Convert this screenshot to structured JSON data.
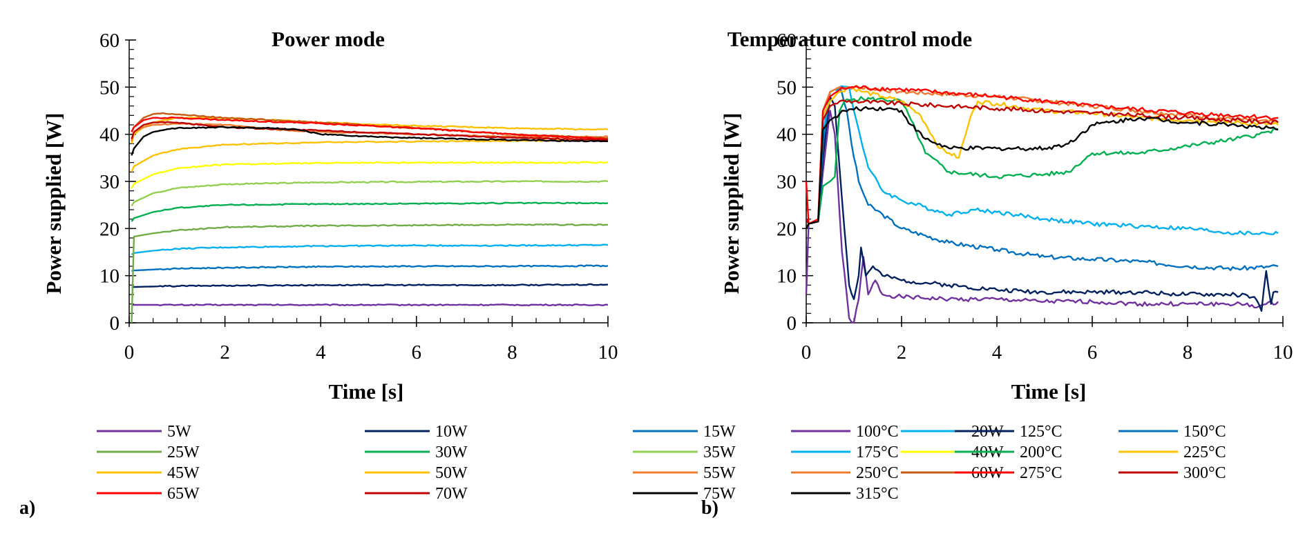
{
  "chart_data": [
    {
      "type": "line",
      "panel_label": "a)",
      "title": "Power mode",
      "xlabel": "Time [s]",
      "ylabel": "Power supplied [W]",
      "xlim": [
        0,
        10
      ],
      "ylim": [
        0,
        60
      ],
      "xticks": [
        "0",
        "2",
        "4",
        "6",
        "8",
        "10"
      ],
      "yticks": [
        "0",
        "10",
        "20",
        "30",
        "40",
        "50",
        "60"
      ],
      "grid": false,
      "legend_position": "bottom",
      "series": [
        {
          "name": "5W",
          "color": "#7030A0",
          "x": [
            0.05,
            0.1,
            0.5,
            1,
            2,
            4,
            6,
            8,
            10
          ],
          "y": [
            3.8,
            3.8,
            3.8,
            3.8,
            3.8,
            3.8,
            3.8,
            3.8,
            3.8
          ]
        },
        {
          "name": "10W",
          "color": "#002060",
          "x": [
            0.05,
            0.1,
            0.5,
            1,
            2,
            4,
            6,
            8,
            10
          ],
          "y": [
            7.5,
            7.6,
            7.7,
            7.8,
            7.9,
            8.0,
            8.0,
            8.0,
            8.1
          ]
        },
        {
          "name": "15W",
          "color": "#0070C0",
          "x": [
            0.05,
            0.1,
            0.5,
            1,
            2,
            4,
            6,
            8,
            10
          ],
          "y": [
            11.0,
            11.1,
            11.3,
            11.5,
            11.7,
            11.9,
            12.0,
            12.0,
            12.1
          ]
        },
        {
          "name": "20W",
          "color": "#00B0F0",
          "x": [
            0.05,
            0.1,
            0.5,
            1,
            2,
            4,
            6,
            8,
            10
          ],
          "y": [
            14.5,
            14.8,
            15.3,
            15.7,
            16.0,
            16.3,
            16.4,
            16.4,
            16.5
          ]
        },
        {
          "name": "25W",
          "color": "#70AD47",
          "x": [
            0.05,
            0.1,
            0.5,
            1,
            2,
            4,
            6,
            8,
            10
          ],
          "y": [
            0,
            18.3,
            19.0,
            19.6,
            20.3,
            20.6,
            20.7,
            20.8,
            20.8
          ]
        },
        {
          "name": "30W",
          "color": "#00B050",
          "x": [
            0.05,
            0.1,
            0.5,
            1,
            2,
            4,
            6,
            8,
            10
          ],
          "y": [
            21.5,
            22.2,
            23.5,
            24.4,
            25.0,
            25.2,
            25.3,
            25.4,
            25.4
          ]
        },
        {
          "name": "35W",
          "color": "#92D050",
          "x": [
            0.05,
            0.1,
            0.5,
            1,
            2,
            4,
            6,
            8,
            10
          ],
          "y": [
            24.8,
            25.6,
            27.5,
            28.6,
            29.4,
            29.8,
            29.9,
            30.0,
            30.0
          ]
        },
        {
          "name": "40W",
          "color": "#FFFF00",
          "x": [
            0.05,
            0.1,
            0.5,
            1,
            2,
            4,
            6,
            8,
            10
          ],
          "y": [
            28.5,
            29.5,
            31.5,
            32.8,
            33.6,
            33.9,
            34.0,
            34.0,
            34.0
          ]
        },
        {
          "name": "45W",
          "color": "#FFC000",
          "x": [
            0.05,
            0.1,
            0.5,
            1,
            2,
            4,
            6,
            8,
            10
          ],
          "y": [
            32.0,
            33.2,
            35.5,
            36.8,
            37.8,
            38.3,
            38.5,
            38.6,
            38.7
          ]
        },
        {
          "name": "50W",
          "color": "#FFC000",
          "x": [
            0.05,
            0.1,
            0.3,
            0.5,
            1,
            2,
            4,
            6,
            8,
            10
          ],
          "y": [
            38.0,
            40.0,
            41.5,
            42.5,
            43.5,
            43.5,
            42.5,
            41.8,
            41.3,
            41.0
          ]
        },
        {
          "name": "55W",
          "color": "#ED7D31",
          "x": [
            0.05,
            0.1,
            0.3,
            0.5,
            1,
            2,
            3,
            4,
            6,
            8,
            10
          ],
          "y": [
            38.5,
            40.5,
            41.5,
            42.0,
            42.2,
            42.0,
            41.0,
            40.5,
            40.0,
            39.5,
            39.5
          ]
        },
        {
          "name": "60W",
          "color": "#C55A11",
          "x": [
            0.05,
            0.1,
            0.3,
            0.5,
            0.7,
            1,
            2,
            4,
            6,
            8,
            10
          ],
          "y": [
            40.5,
            41.5,
            43.5,
            44.3,
            44.5,
            44.2,
            43.5,
            42.5,
            41.3,
            40.0,
            39.2
          ]
        },
        {
          "name": "65W",
          "color": "#FF0000",
          "x": [
            0.05,
            0.1,
            0.3,
            0.5,
            1,
            2,
            4,
            6,
            8,
            10
          ],
          "y": [
            40.5,
            41.5,
            43.0,
            43.5,
            43.5,
            43.0,
            42.3,
            41.3,
            40.0,
            39.0
          ]
        },
        {
          "name": "70W",
          "color": "#C00000",
          "x": [
            0.05,
            0.1,
            0.3,
            0.5,
            1,
            2,
            4,
            6,
            8,
            10
          ],
          "y": [
            39.0,
            40.5,
            42.0,
            42.5,
            42.5,
            41.5,
            40.8,
            40.0,
            39.3,
            38.8
          ]
        },
        {
          "name": "75W",
          "color": "#000000",
          "x": [
            0.05,
            0.1,
            0.3,
            0.5,
            1,
            2,
            3,
            3.5,
            4,
            5,
            6,
            8,
            10
          ],
          "y": [
            35.5,
            37.0,
            39.5,
            40.5,
            41.3,
            41.5,
            41.3,
            41.0,
            40.0,
            39.5,
            39.2,
            38.8,
            38.5
          ]
        }
      ]
    },
    {
      "type": "line",
      "panel_label": "b)",
      "title": "Temperature control mode",
      "xlabel": "Time [s]",
      "ylabel": "Power supplied [W]",
      "xlim": [
        0,
        10
      ],
      "ylim": [
        0,
        60
      ],
      "xticks": [
        "0",
        "2",
        "4",
        "6",
        "8",
        "10"
      ],
      "yticks": [
        "0",
        "10",
        "20",
        "30",
        "40",
        "50",
        "60"
      ],
      "grid": false,
      "legend_position": "bottom",
      "series": [
        {
          "name": "100°C",
          "color": "#7030A0",
          "x": [
            0,
            0.05,
            0.25,
            0.35,
            0.5,
            0.6,
            0.75,
            0.9,
            1.0,
            1.1,
            1.2,
            1.3,
            1.45,
            1.6,
            2,
            3,
            4,
            5,
            6,
            7,
            8,
            9,
            9.5,
            9.9
          ],
          "y": [
            6,
            21,
            21.5,
            32,
            45,
            40,
            15,
            1,
            0,
            5,
            14,
            6,
            9,
            6,
            5.5,
            5,
            5,
            4.5,
            4.5,
            4,
            4,
            4,
            3.5,
            4.5
          ]
        },
        {
          "name": "125°C",
          "color": "#002060",
          "x": [
            0,
            0.05,
            0.25,
            0.35,
            0.5,
            0.6,
            0.8,
            0.9,
            1.0,
            1.1,
            1.15,
            1.25,
            1.4,
            1.6,
            2,
            3,
            4,
            5,
            6,
            7,
            8,
            9,
            9.4,
            9.55,
            9.65,
            9.75,
            9.8,
            9.9
          ],
          "y": [
            20,
            21,
            21.5,
            35,
            48,
            46,
            20,
            8,
            5,
            10,
            16,
            10,
            12,
            10,
            9,
            8,
            7,
            6.5,
            6.5,
            6.5,
            6,
            6,
            5.5,
            2.5,
            11,
            4,
            6.5,
            6.5
          ]
        },
        {
          "name": "150°C",
          "color": "#0070C0",
          "x": [
            0,
            0.05,
            0.25,
            0.35,
            0.5,
            0.7,
            0.85,
            0.95,
            1.1,
            1.3,
            1.6,
            2,
            3,
            4,
            5,
            6,
            7,
            8,
            9,
            9.9
          ],
          "y": [
            20,
            21,
            21.5,
            38,
            49,
            50,
            45,
            38,
            30,
            25,
            23,
            20,
            17,
            15.5,
            14,
            13.5,
            13,
            12,
            11.5,
            12
          ]
        },
        {
          "name": "175°C",
          "color": "#00B0F0",
          "x": [
            0,
            0.05,
            0.25,
            0.35,
            0.5,
            0.7,
            0.9,
            1.0,
            1.1,
            1.3,
            1.6,
            2,
            3,
            3.5,
            4,
            5,
            6,
            7,
            8,
            9,
            9.9
          ],
          "y": [
            20,
            21,
            21.5,
            40,
            49,
            50,
            50,
            45,
            41,
            33,
            28,
            26,
            23,
            24,
            23.5,
            22,
            21,
            20.5,
            20,
            19,
            19
          ]
        },
        {
          "name": "200°C",
          "color": "#00B050",
          "x": [
            0,
            0.05,
            0.25,
            0.35,
            0.5,
            0.6,
            0.7,
            0.8,
            1,
            1.5,
            2,
            2.2,
            2.5,
            3,
            4,
            5,
            5.5,
            6,
            7,
            8,
            9,
            9.5,
            9.9
          ],
          "y": [
            20,
            21,
            21.5,
            29,
            30,
            31,
            45,
            47,
            47.5,
            47.5,
            47,
            43,
            36,
            32,
            31,
            31.5,
            32,
            36,
            36,
            37.5,
            39,
            40,
            41
          ]
        },
        {
          "name": "225°C",
          "color": "#FFC000",
          "x": [
            0,
            0.05,
            0.25,
            0.35,
            0.5,
            0.7,
            0.9,
            1.2,
            1.6,
            2,
            2.4,
            2.8,
            3.0,
            3.2,
            3.4,
            3.5,
            3.6,
            4,
            5,
            6,
            7,
            8,
            9,
            9.9
          ],
          "y": [
            20,
            21,
            21.5,
            44,
            47,
            49,
            50,
            49,
            48,
            47,
            44,
            37,
            36,
            35,
            42,
            45,
            47,
            46.5,
            45,
            44.5,
            43.5,
            43,
            42.5,
            42
          ]
        },
        {
          "name": "250°C",
          "color": "#ED7D31",
          "x": [
            0,
            0.05,
            0.25,
            0.35,
            0.5,
            0.7,
            1,
            2,
            4,
            6,
            8,
            9.9
          ],
          "y": [
            20,
            21,
            21.5,
            45,
            49,
            50,
            50,
            49,
            48,
            46,
            44,
            42.5
          ]
        },
        {
          "name": "275°C",
          "color": "#FF0000",
          "x": [
            0,
            0.05,
            0.25,
            0.35,
            0.5,
            0.7,
            1,
            2,
            4,
            6,
            8,
            9.9
          ],
          "y": [
            30,
            21,
            22,
            45,
            48,
            49.5,
            50,
            49.5,
            48,
            46,
            44.5,
            43.5
          ]
        },
        {
          "name": "300°C",
          "color": "#C00000",
          "x": [
            0,
            0.05,
            0.25,
            0.35,
            0.5,
            0.7,
            1,
            2,
            4,
            6,
            8,
            9.9
          ],
          "y": [
            22,
            21,
            21.5,
            43,
            46,
            47,
            47,
            46.5,
            45.5,
            44.5,
            43.5,
            42.5
          ]
        },
        {
          "name": "315°C",
          "color": "#000000",
          "x": [
            0,
            0.05,
            0.25,
            0.35,
            0.5,
            0.8,
            1.2,
            1.7,
            2.0,
            2.2,
            2.5,
            3,
            4,
            5,
            5.5,
            6,
            7,
            8,
            9,
            9.9
          ],
          "y": [
            20,
            21,
            21.5,
            41,
            43,
            45,
            45.5,
            45.5,
            45,
            42,
            39,
            37,
            37,
            37,
            38,
            42,
            43.5,
            42.5,
            42,
            41
          ]
        }
      ]
    }
  ]
}
